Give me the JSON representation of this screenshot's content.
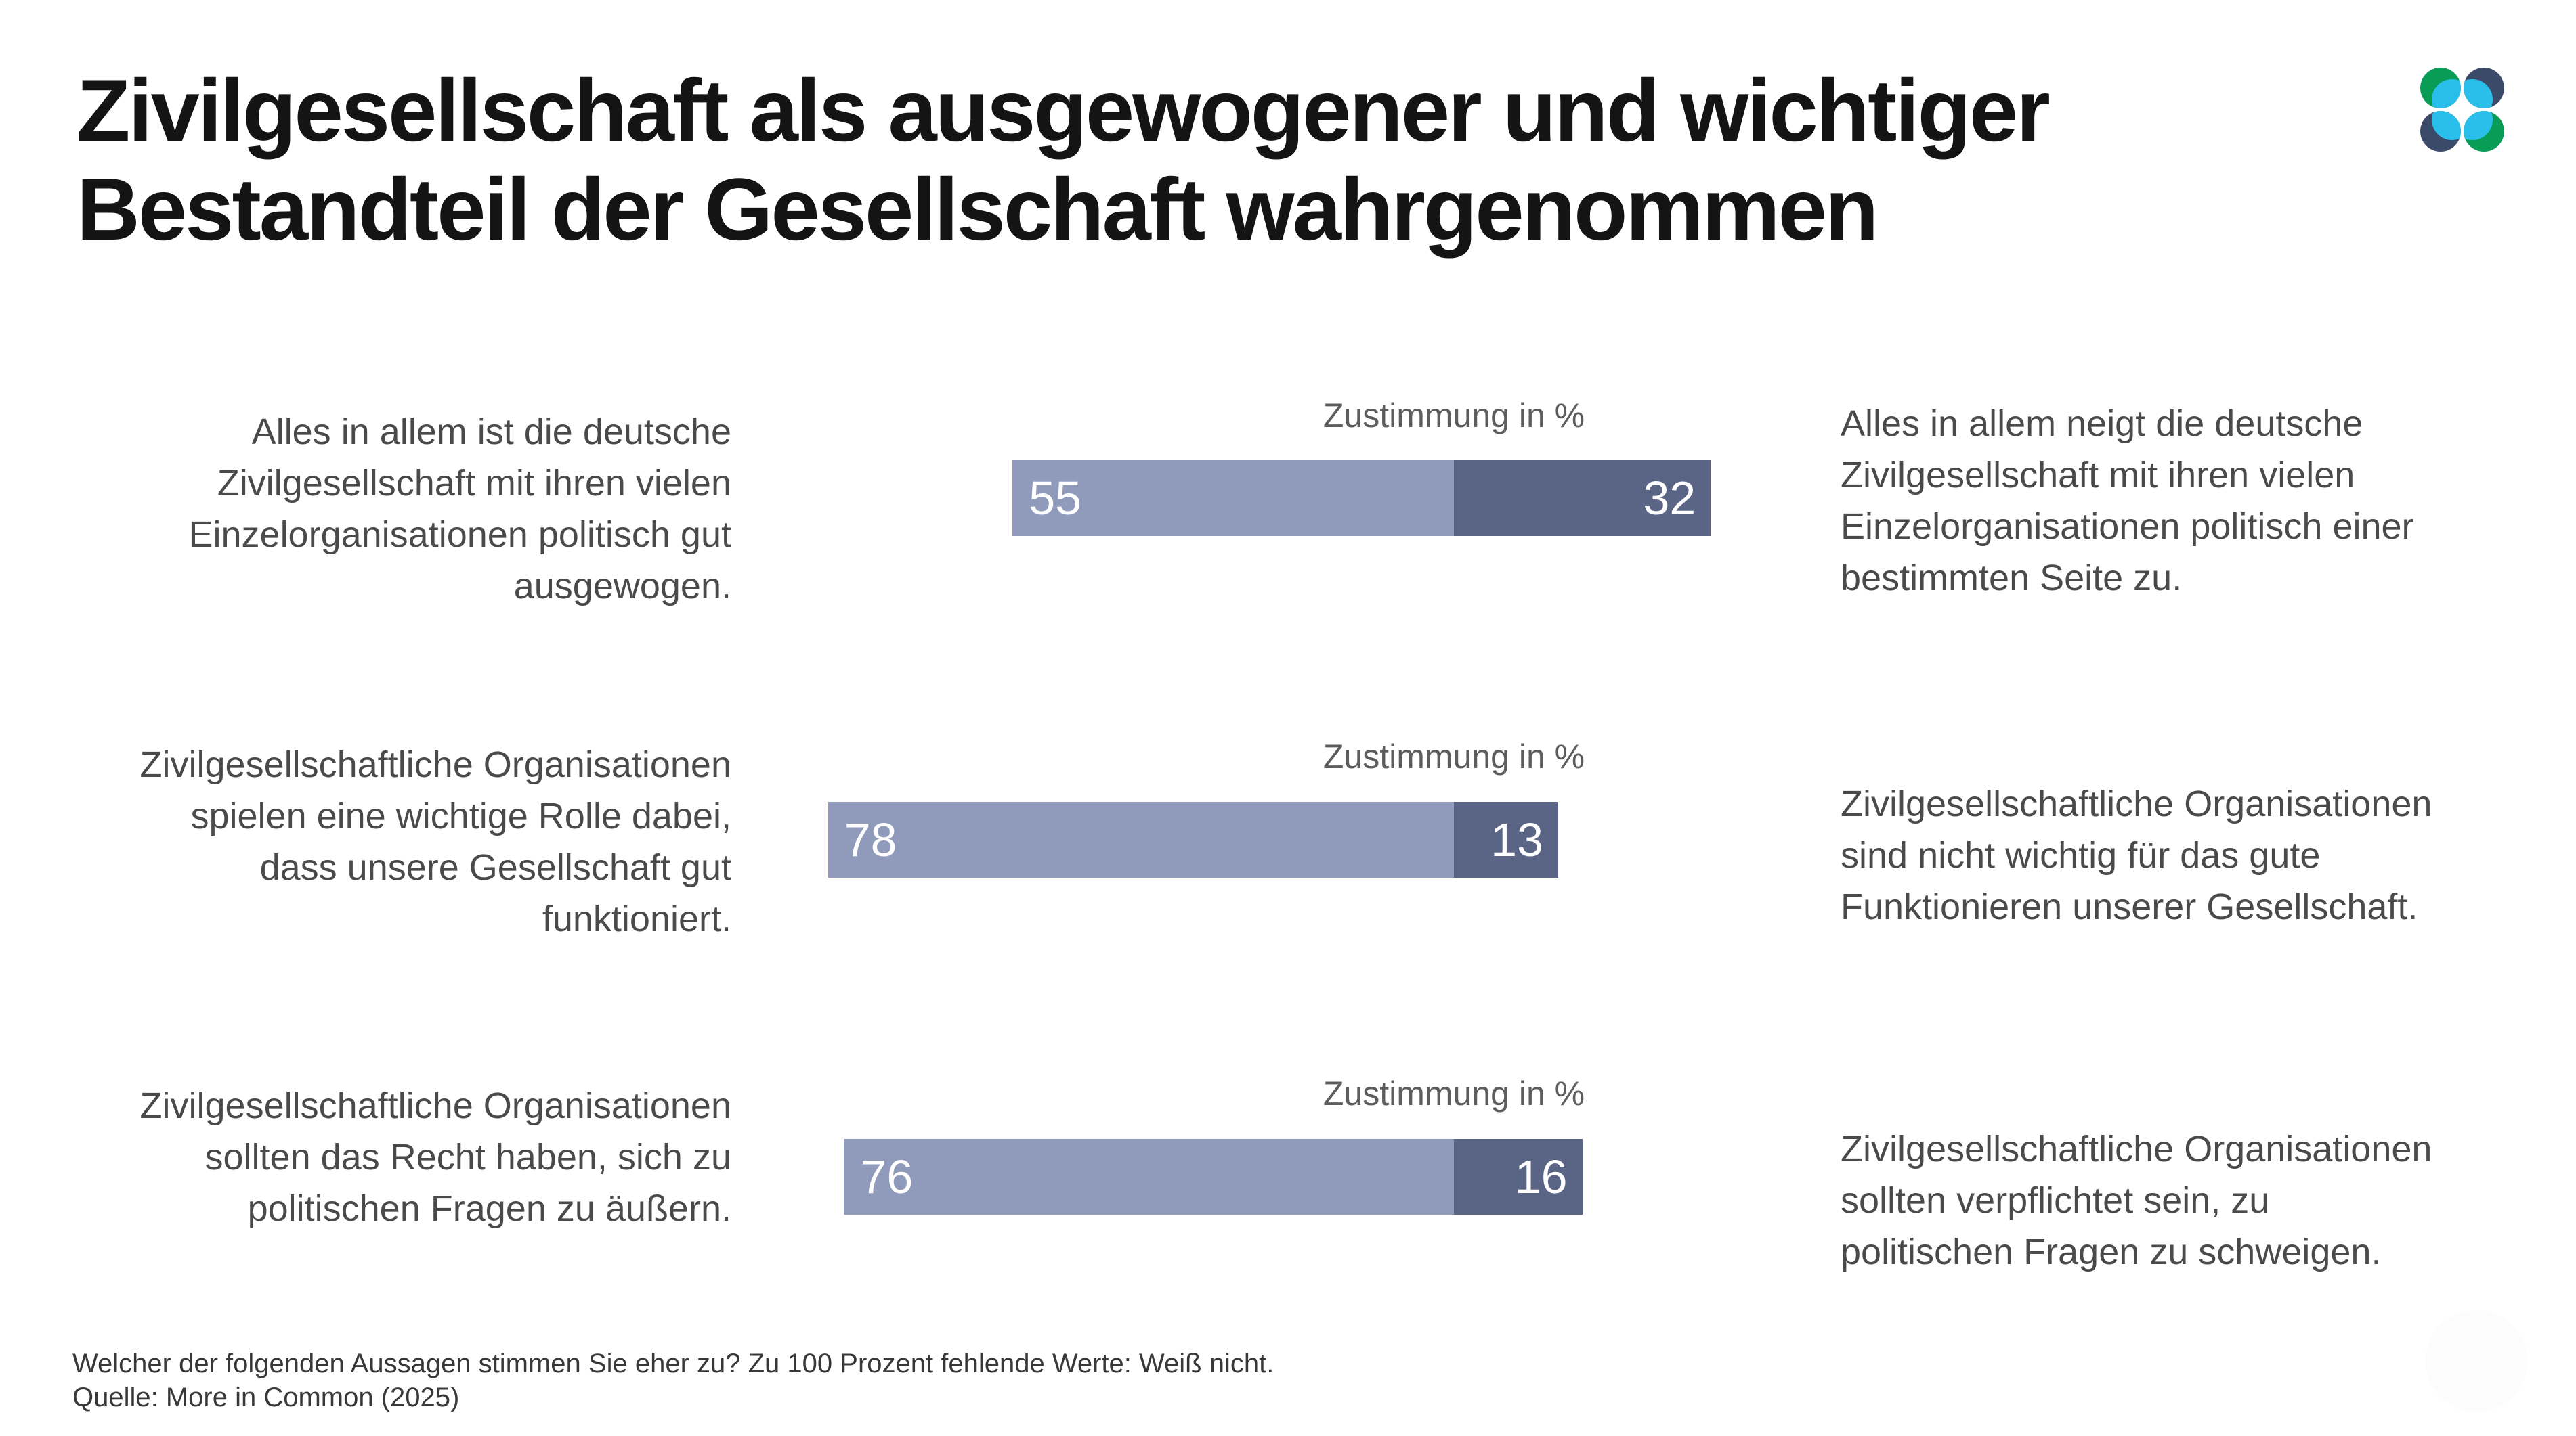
{
  "header": {
    "title_lines": [
      "Zivilgesellschaft als ausgewogener und wichtiger",
      "Bestandteil der Gesellschaft wahrgenommen"
    ],
    "logo": {
      "name": "More in Common Logo",
      "colors": {
        "green": "#089C56",
        "navy": "#3A4A68",
        "cyan": "#29BFEA"
      }
    }
  },
  "chart_data": {
    "type": "bar",
    "variant": "diverging paired-statement agreement bars",
    "title": "Zivilgesellschaft als ausgewogener und wichtiger Bestandteil der Gesellschaft wahrgenommen",
    "axis_label": "Zustimmung in %",
    "value_range": [
      0,
      100
    ],
    "legend_position": "none",
    "grid": false,
    "colors": {
      "bar_left": "#909BBC",
      "bar_right": "#5A6585"
    },
    "items": [
      {
        "statement_left": "Alles in allem ist die deutsche Zivilgesellschaft mit ihren vielen Einzelorganisationen politisch gut ausgewogen.",
        "value_left": 55,
        "value_right": 32,
        "statement_right": "Alles in allem neigt die deutsche Zivilgesellschaft mit ihren vielen Einzelorganisationen politisch einer bestimmten Seite zu."
      },
      {
        "statement_left": "Zivilgesellschaftliche Organisationen spielen eine wichtige Rolle dabei, dass unsere Gesellschaft gut funktioniert.",
        "value_left": 78,
        "value_right": 13,
        "statement_right": "Zivilgesellschaftliche Organisationen sind nicht wichtig für das gute Funktionieren unserer Gesellschaft."
      },
      {
        "statement_left": "Zivilgesellschaftliche Organisationen sollten das Recht haben, sich zu politischen Fragen zu äußern.",
        "value_left": 76,
        "value_right": 16,
        "statement_right": "Zivilgesellschaftliche Organisationen sollten verpflichtet sein, zu politischen Fragen zu schweigen."
      }
    ],
    "footnote": "Welcher der folgenden Aussagen stimmen Sie eher zu? Zu 100 Prozent fehlende Werte: Weiß nicht.",
    "source": "Quelle: More in Common (2025)"
  },
  "rows": [
    {
      "axis_label": "Zustimmung in %",
      "left_lines": [
        "Alles in allem ist die deutsche",
        "Zivilgesellschaft mit ihren vielen",
        "Einzelorganisationen politisch gut",
        "ausgewogen."
      ],
      "right_lines": [
        "Alles in allem neigt die deutsche",
        "Zivilgesellschaft mit ihren vielen",
        "Einzelorganisationen politisch einer",
        "bestimmten Seite zu."
      ]
    },
    {
      "axis_label": "Zustimmung in %",
      "left_lines": [
        "Zivilgesellschaftliche Organisationen",
        "spielen eine wichtige Rolle dabei,",
        "dass unsere Gesellschaft gut",
        "funktioniert."
      ],
      "right_lines": [
        "Zivilgesellschaftliche Organisationen",
        "sind nicht wichtig für das gute",
        "Funktionieren unserer Gesellschaft."
      ]
    },
    {
      "axis_label": "Zustimmung in %",
      "left_lines": [
        "Zivilgesellschaftliche Organisationen",
        "sollten das Recht haben, sich zu",
        "politischen Fragen zu äußern."
      ],
      "right_lines": [
        "Zivilgesellschaftliche Organisationen",
        "sollten verpflichtet sein, zu",
        "politischen Fragen zu schweigen."
      ]
    }
  ],
  "footer": {
    "line1": "Welcher der folgenden Aussagen stimmen Sie eher zu? Zu 100 Prozent fehlende Werte: Weiß nicht.",
    "line2": "Quelle: More in Common (2025)"
  }
}
